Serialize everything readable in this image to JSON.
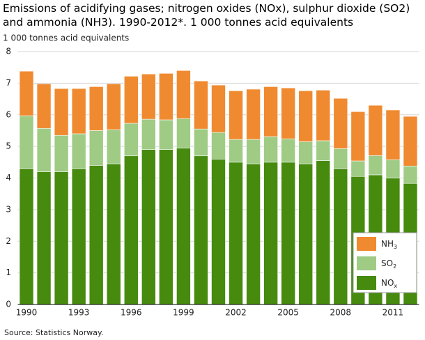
{
  "chart_data": {
    "type": "stacked_bar",
    "title": "Emissions of acidifying gases; nitrogen oxides (NOx), sulphur dioxide (SO2) and ammonia (NH3). 1990-2012*. 1 000 tonnes acid equivalents",
    "y_label": "1 000 tonnes acid equivalents",
    "source": "Source: Statistics Norway.",
    "categories": [
      "1990",
      null,
      null,
      "1993",
      null,
      null,
      "1996",
      null,
      null,
      "1999",
      null,
      null,
      "2002",
      null,
      null,
      "2005",
      null,
      null,
      "2008",
      null,
      null,
      "2011",
      null
    ],
    "series": [
      {
        "name": "NOx",
        "color": "#468a0e",
        "values": [
          4.3,
          4.2,
          4.2,
          4.3,
          4.4,
          4.45,
          4.7,
          4.9,
          4.9,
          4.95,
          4.7,
          4.6,
          4.5,
          4.45,
          4.5,
          4.5,
          4.45,
          4.55,
          4.3,
          4.05,
          4.1,
          4.0,
          3.83
        ]
      },
      {
        "name": "SO2",
        "color": "#9fcb85",
        "values": [
          1.67,
          1.37,
          1.15,
          1.1,
          1.1,
          1.08,
          1.03,
          0.96,
          0.94,
          0.93,
          0.85,
          0.84,
          0.72,
          0.77,
          0.81,
          0.74,
          0.7,
          0.63,
          0.63,
          0.49,
          0.61,
          0.58,
          0.55
        ]
      },
      {
        "name": "NH3",
        "color": "#f08a30",
        "values": [
          1.41,
          1.41,
          1.48,
          1.43,
          1.39,
          1.45,
          1.49,
          1.43,
          1.47,
          1.52,
          1.52,
          1.5,
          1.54,
          1.59,
          1.58,
          1.61,
          1.61,
          1.6,
          1.59,
          1.56,
          1.59,
          1.57,
          1.57
        ]
      }
    ],
    "ylim": [
      0,
      8
    ],
    "yticks": [
      0,
      1,
      2,
      3,
      4,
      5,
      6,
      7,
      8
    ],
    "grid": true,
    "legend": "lower right"
  }
}
